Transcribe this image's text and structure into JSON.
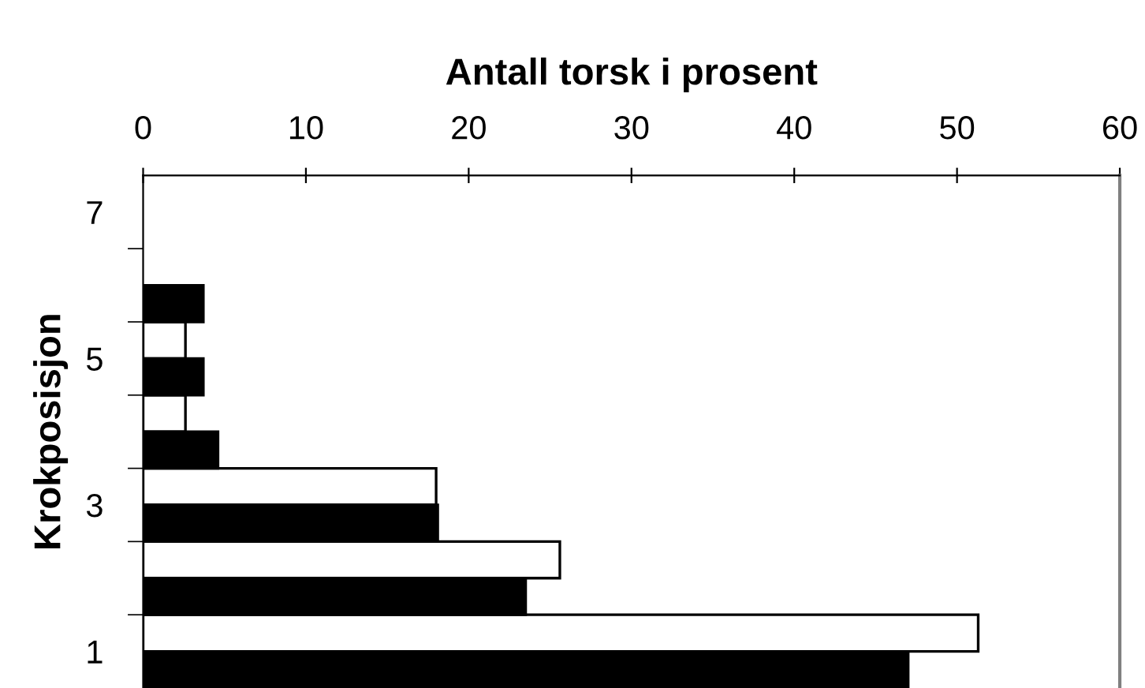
{
  "chart_data": {
    "type": "bar",
    "orientation": "horizontal",
    "xlabel": "Antall torsk i prosent",
    "ylabel": "Krokposisjon",
    "categories": [
      "7",
      null,
      "5",
      null,
      "3",
      null,
      "1"
    ],
    "series": [
      {
        "color": "#ffffff",
        "values": [
          0,
          0,
          2.6,
          2.6,
          18.0,
          25.6,
          51.3
        ]
      },
      {
        "color": "#000000",
        "values": [
          0,
          3.7,
          3.7,
          4.6,
          18.1,
          23.5,
          47.0
        ]
      }
    ],
    "xlim": [
      0,
      60
    ],
    "xticks": [
      0,
      10,
      20,
      30,
      40,
      50,
      60
    ],
    "grid": false,
    "legend": false
  }
}
